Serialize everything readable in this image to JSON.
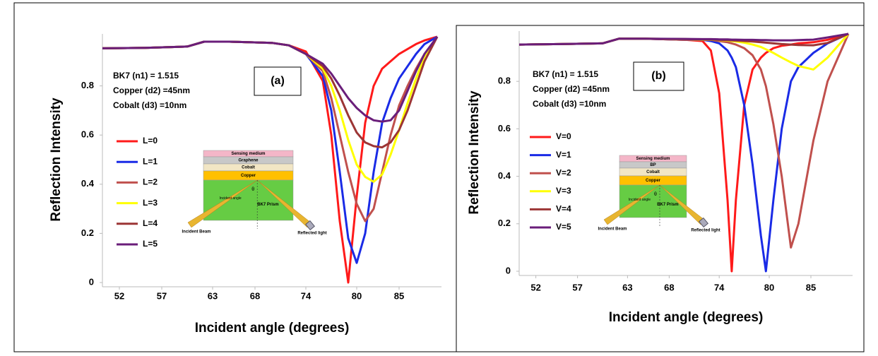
{
  "chart_data": [
    {
      "type": "line",
      "label": "(a)",
      "annotations": [
        "BK7 (n1) = 1.515",
        "Copper (d2) =45nm",
        "Cobalt (d3)  =10nm"
      ],
      "x_label": "Incident angle (degrees)",
      "y_label": "Reflection Intensity",
      "x": [
        50,
        55,
        60,
        62,
        65,
        70,
        72,
        74,
        76,
        77,
        78,
        79,
        80,
        81,
        82,
        83,
        84,
        85,
        86,
        87,
        88,
        89.5
      ],
      "xlim": [
        50,
        90
      ],
      "xticks": [
        52,
        57,
        63,
        68,
        74,
        80,
        85
      ],
      "ylim": [
        0,
        1
      ],
      "yticks": [
        0,
        0.2,
        0.4,
        0.6,
        0.8
      ],
      "series": [
        {
          "name": "L=0",
          "color": "#ff1a1a",
          "values": [
            0.953,
            0.955,
            0.96,
            0.98,
            0.98,
            0.975,
            0.965,
            0.94,
            0.82,
            0.6,
            0.25,
            0.0,
            0.35,
            0.65,
            0.8,
            0.87,
            0.9,
            0.93,
            0.95,
            0.97,
            0.985,
            1.0
          ]
        },
        {
          "name": "L=1",
          "color": "#1a2be6",
          "values": [
            0.953,
            0.955,
            0.96,
            0.98,
            0.98,
            0.975,
            0.965,
            0.93,
            0.84,
            0.7,
            0.45,
            0.18,
            0.08,
            0.2,
            0.45,
            0.65,
            0.75,
            0.83,
            0.88,
            0.93,
            0.97,
            1.0
          ]
        },
        {
          "name": "L=2",
          "color": "#c0504d",
          "values": [
            0.953,
            0.955,
            0.96,
            0.98,
            0.98,
            0.975,
            0.965,
            0.93,
            0.86,
            0.75,
            0.6,
            0.45,
            0.32,
            0.25,
            0.3,
            0.45,
            0.6,
            0.72,
            0.8,
            0.87,
            0.93,
            1.0
          ]
        },
        {
          "name": "L=3",
          "color": "#ffff00",
          "values": [
            0.953,
            0.955,
            0.96,
            0.98,
            0.98,
            0.975,
            0.965,
            0.93,
            0.87,
            0.8,
            0.7,
            0.58,
            0.48,
            0.43,
            0.41,
            0.44,
            0.52,
            0.62,
            0.73,
            0.83,
            0.92,
            1.0
          ]
        },
        {
          "name": "L=4",
          "color": "#9c3535",
          "values": [
            0.953,
            0.955,
            0.96,
            0.98,
            0.98,
            0.975,
            0.965,
            0.93,
            0.88,
            0.83,
            0.76,
            0.68,
            0.61,
            0.57,
            0.555,
            0.55,
            0.57,
            0.62,
            0.7,
            0.8,
            0.9,
            1.0
          ]
        },
        {
          "name": "L=5",
          "color": "#6a1e7a",
          "values": [
            0.953,
            0.955,
            0.96,
            0.98,
            0.98,
            0.975,
            0.965,
            0.93,
            0.89,
            0.85,
            0.8,
            0.75,
            0.71,
            0.68,
            0.66,
            0.655,
            0.66,
            0.7,
            0.78,
            0.86,
            0.93,
            1.0
          ]
        }
      ],
      "inset": {
        "layers": [
          "Sensing medium",
          "Graphene",
          "Cobalt",
          "Copper"
        ],
        "prism": "BK7 Prism",
        "angle_label": "Incident angle",
        "theta": "θ",
        "incident_beam": "Incident Beam",
        "reflected_light": "Reflected light"
      }
    },
    {
      "type": "line",
      "label": "(b)",
      "annotations": [
        "BK7 (n1) = 1.515",
        "Copper (d2) =45nm",
        "Cobalt (d3)  =10nm"
      ],
      "x_label": "Incident angle (degrees)",
      "y_label": "Reflection Intensity",
      "x": [
        50,
        55,
        60,
        62,
        65,
        70,
        72,
        73,
        74,
        75,
        75.5,
        76,
        77,
        78,
        79,
        79.6,
        80.5,
        81.5,
        82.6,
        83.5,
        85.3,
        87,
        89.5
      ],
      "xlim": [
        50,
        90
      ],
      "xticks": [
        52,
        57,
        63,
        68,
        74,
        80,
        85
      ],
      "ylim": [
        0,
        1
      ],
      "yticks": [
        0,
        0.2,
        0.4,
        0.6,
        0.8
      ],
      "series": [
        {
          "name": "V=0",
          "color": "#ff1a1a",
          "values": [
            0.955,
            0.957,
            0.96,
            0.98,
            0.98,
            0.975,
            0.97,
            0.93,
            0.75,
            0.3,
            0.0,
            0.3,
            0.7,
            0.85,
            0.9,
            0.92,
            0.94,
            0.95,
            0.955,
            0.96,
            0.965,
            0.975,
            1.0
          ]
        },
        {
          "name": "V=1",
          "color": "#1a2be6",
          "values": [
            0.955,
            0.957,
            0.96,
            0.98,
            0.98,
            0.975,
            0.975,
            0.97,
            0.96,
            0.93,
            0.9,
            0.86,
            0.7,
            0.45,
            0.15,
            0.0,
            0.3,
            0.6,
            0.8,
            0.86,
            0.92,
            0.96,
            1.0
          ]
        },
        {
          "name": "V=2",
          "color": "#c0504d",
          "values": [
            0.955,
            0.957,
            0.96,
            0.98,
            0.98,
            0.975,
            0.975,
            0.975,
            0.97,
            0.965,
            0.96,
            0.955,
            0.94,
            0.91,
            0.85,
            0.78,
            0.62,
            0.4,
            0.1,
            0.2,
            0.55,
            0.8,
            1.0
          ]
        },
        {
          "name": "V=3",
          "color": "#ffff00",
          "values": [
            0.955,
            0.957,
            0.96,
            0.98,
            0.98,
            0.978,
            0.976,
            0.975,
            0.974,
            0.972,
            0.97,
            0.968,
            0.963,
            0.955,
            0.945,
            0.935,
            0.92,
            0.9,
            0.88,
            0.865,
            0.85,
            0.9,
            1.0
          ]
        },
        {
          "name": "V=4",
          "color": "#9c3535",
          "values": [
            0.955,
            0.957,
            0.96,
            0.98,
            0.98,
            0.978,
            0.977,
            0.976,
            0.975,
            0.974,
            0.973,
            0.972,
            0.97,
            0.968,
            0.965,
            0.963,
            0.96,
            0.957,
            0.955,
            0.953,
            0.952,
            0.962,
            1.0
          ]
        },
        {
          "name": "V=5",
          "color": "#6a1e7a",
          "values": [
            0.955,
            0.957,
            0.96,
            0.98,
            0.98,
            0.979,
            0.978,
            0.978,
            0.977,
            0.977,
            0.976,
            0.976,
            0.975,
            0.975,
            0.974,
            0.974,
            0.973,
            0.973,
            0.973,
            0.974,
            0.976,
            0.985,
            1.0
          ]
        }
      ],
      "inset": {
        "layers": [
          "Sensing medium",
          "BP",
          "Cobalt",
          "Copper"
        ],
        "prism": "BK7 Prism",
        "angle_label": "Incident angle",
        "theta": "θ",
        "incident_beam": "Incident Beam",
        "reflected_light": "Reflected light"
      }
    }
  ]
}
